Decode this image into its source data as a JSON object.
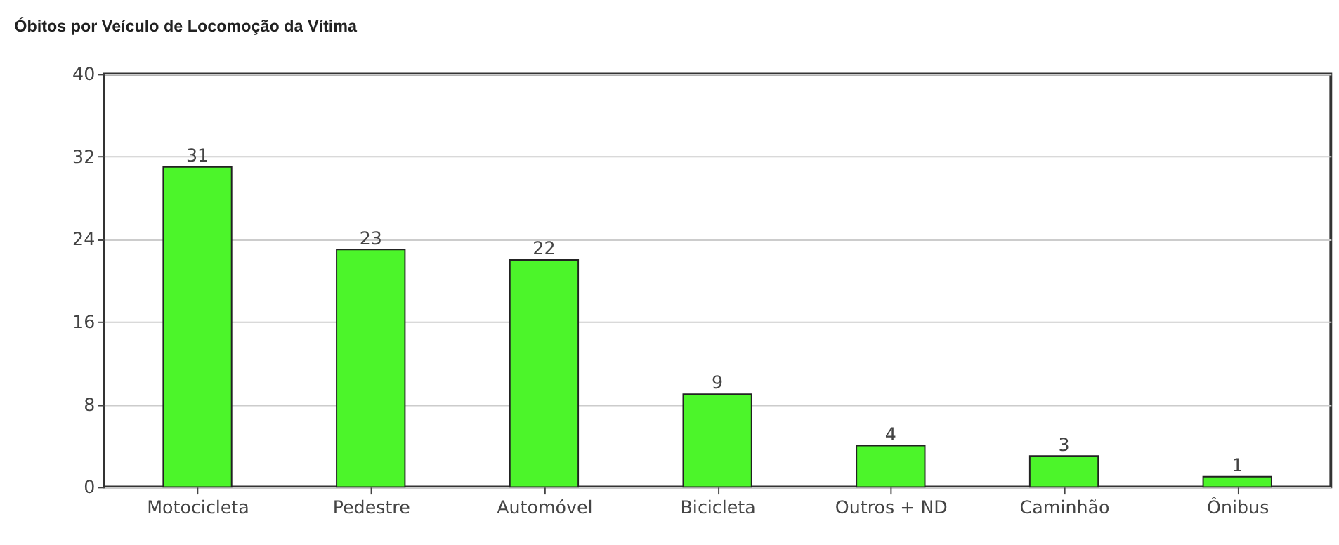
{
  "chart_data": {
    "type": "bar",
    "title": "Óbitos por Veículo de Locomoção da Vítima",
    "categories": [
      "Motocicleta",
      "Pedestre",
      "Automóvel",
      "Bicicleta",
      "Outros + ND",
      "Caminhão",
      "Ônibus"
    ],
    "values": [
      31,
      23,
      22,
      9,
      4,
      3,
      1
    ],
    "color": "#4cf52a",
    "ylim": [
      0,
      40
    ],
    "yticks": [
      0,
      8,
      16,
      24,
      32,
      40
    ],
    "grid": "y",
    "data_labels": true
  }
}
